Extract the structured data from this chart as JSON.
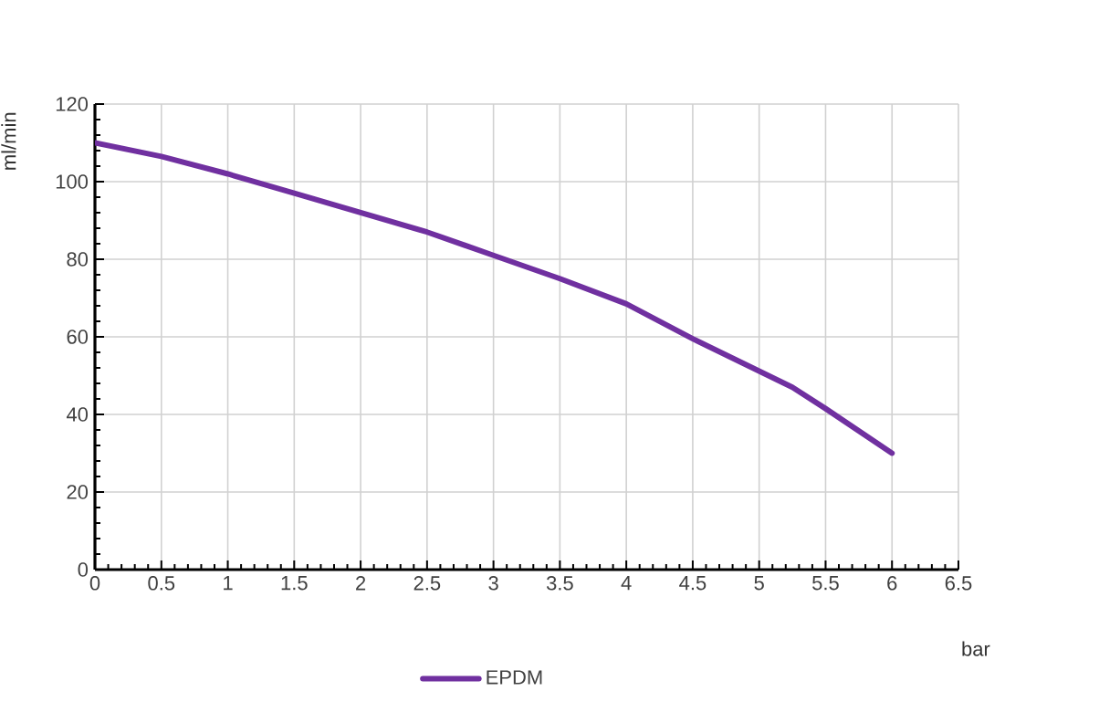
{
  "chart_data": {
    "type": "line",
    "xlabel": "bar",
    "ylabel": "ml/min",
    "x": [
      0,
      0.5,
      1,
      1.5,
      2,
      2.5,
      3,
      3.5,
      4,
      4.5,
      5.25,
      5.5,
      6
    ],
    "series": [
      {
        "name": "EPDM",
        "color": "#7030a0",
        "values": [
          110,
          106.5,
          102,
          97,
          92,
          87,
          81,
          75,
          68.5,
          59.5,
          47,
          41.5,
          30
        ]
      }
    ],
    "xlim": [
      0,
      6.5
    ],
    "xticks": [
      0,
      0.5,
      1,
      1.5,
      2,
      2.5,
      3,
      3.5,
      4,
      4.5,
      5,
      5.5,
      6,
      6.5
    ],
    "ylim": [
      0,
      120
    ],
    "yticks": [
      0,
      20,
      40,
      60,
      80,
      100,
      120
    ],
    "grid": true,
    "legend": "bottom",
    "marker": "none",
    "line_style": "solid"
  }
}
